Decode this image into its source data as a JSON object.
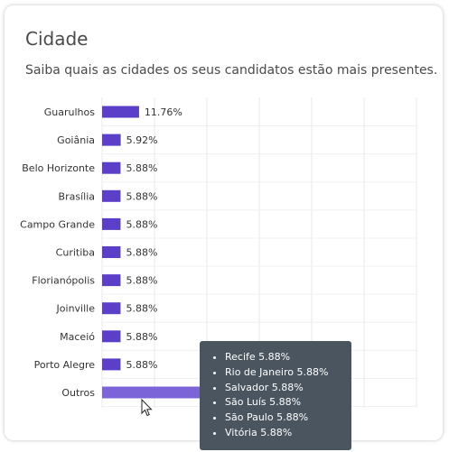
{
  "card": {
    "title": "Cidade",
    "subtitle": "Saiba quais as cidades os seus candidatos estão mais presentes."
  },
  "chart_data": {
    "type": "bar",
    "orientation": "horizontal",
    "categories": [
      "Guarulhos",
      "Goiânia",
      "Belo Horizonte",
      "Brasília",
      "Campo Grande",
      "Curitiba",
      "Florianópolis",
      "Joinville",
      "Maceió",
      "Porto Alegre",
      "Outros"
    ],
    "values": [
      11.76,
      5.92,
      5.88,
      5.88,
      5.88,
      5.88,
      5.88,
      5.88,
      5.88,
      5.88,
      35.28
    ],
    "value_labels": [
      "11.76%",
      "5.92%",
      "5.88%",
      "5.88%",
      "5.88%",
      "5.88%",
      "5.88%",
      "5.88%",
      "5.88%",
      "5.88%",
      ""
    ],
    "xlim": [
      0,
      100
    ],
    "grid": true,
    "bar_color": "#5b3fc9",
    "highlight_color": "#7b64d8",
    "highlighted_category": "Outros"
  },
  "tooltip": {
    "items": [
      "Recife 5.88%",
      "Rio de Janeiro 5.88%",
      "Salvador 5.88%",
      "São Luís 5.88%",
      "São Paulo 5.88%",
      "Vitória 5.88%"
    ]
  }
}
